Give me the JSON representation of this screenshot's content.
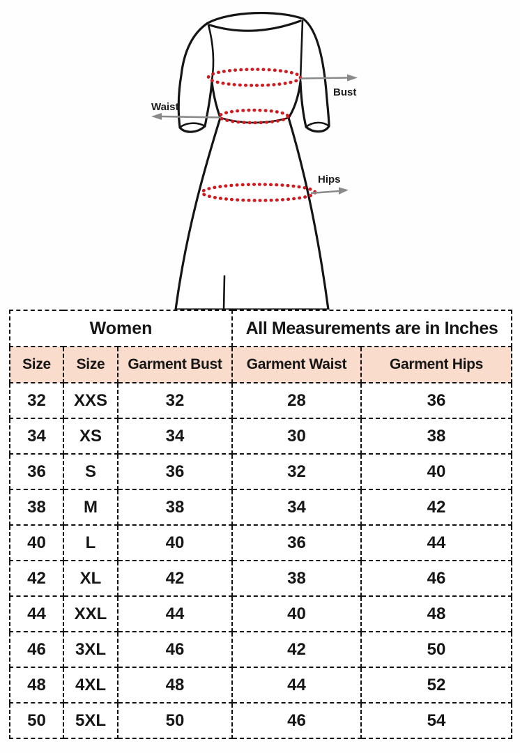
{
  "diagram": {
    "labels": {
      "bust": "Bust",
      "waist": "Waist",
      "hips": "Hips"
    }
  },
  "table": {
    "group_headers": [
      {
        "label": "Women",
        "colspan": 3,
        "bg": "#ffff00"
      },
      {
        "label": "All Measurements are in Inches",
        "colspan": 2,
        "bg": "#ffffff"
      }
    ],
    "columns": [
      "Size",
      "Size",
      "Garment Bust",
      "Garment Waist",
      "Garment Hips"
    ],
    "rows": [
      [
        "32",
        "XXS",
        "32",
        "28",
        "36"
      ],
      [
        "34",
        "XS",
        "34",
        "30",
        "38"
      ],
      [
        "36",
        "S",
        "36",
        "32",
        "40"
      ],
      [
        "38",
        "M",
        "38",
        "34",
        "42"
      ],
      [
        "40",
        "L",
        "40",
        "36",
        "44"
      ],
      [
        "42",
        "XL",
        "42",
        "38",
        "46"
      ],
      [
        "44",
        "XXL",
        "44",
        "40",
        "48"
      ],
      [
        "46",
        "3XL",
        "46",
        "42",
        "50"
      ],
      [
        "48",
        "4XL",
        "48",
        "44",
        "52"
      ],
      [
        "50",
        "5XL",
        "50",
        "46",
        "54"
      ]
    ]
  },
  "colors": {
    "highlight_yellow": "#ffff00",
    "header_peach": "#f9dccb",
    "measure_red": "#cf1b20",
    "arrow_gray": "#8a8a8a",
    "line_black": "#151515",
    "border_black": "#111111"
  }
}
